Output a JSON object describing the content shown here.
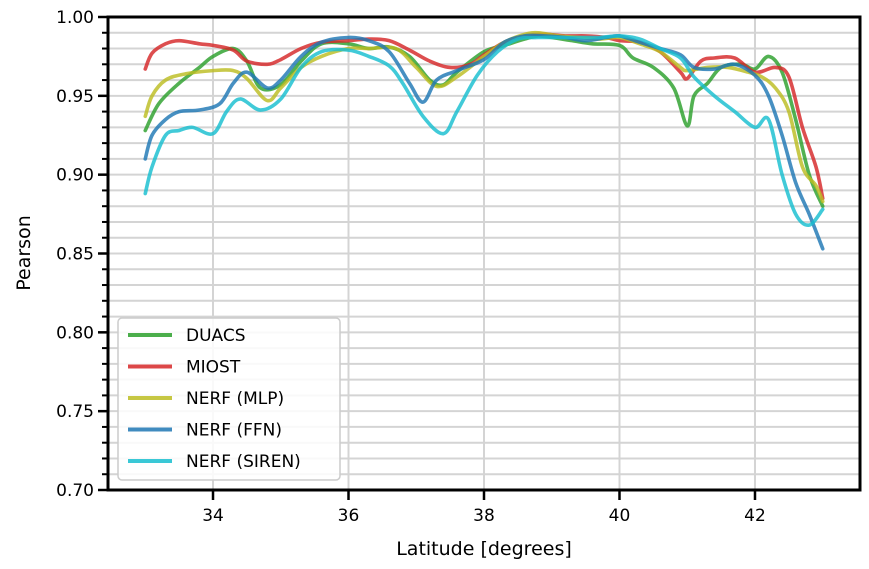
{
  "chart_data": {
    "type": "line",
    "xlabel": "Latitude [degrees]",
    "ylabel": "Pearson",
    "xlim": [
      32.45,
      43.55
    ],
    "ylim": [
      0.7,
      1.0
    ],
    "xticks": [
      34,
      36,
      38,
      40,
      42
    ],
    "xtick_labels": [
      "34",
      "36",
      "38",
      "40",
      "42"
    ],
    "yticks": [
      0.7,
      0.75,
      0.8,
      0.85,
      0.9,
      0.95,
      1.0
    ],
    "ytick_labels": [
      "0.70",
      "0.75",
      "0.80",
      "0.85",
      "0.90",
      "0.95",
      "1.00"
    ],
    "grid": true,
    "legend_position": "lower-left",
    "series": [
      {
        "name": "DUACS",
        "color": "#2ca02c",
        "points": [
          [
            33.0,
            0.928
          ],
          [
            33.2,
            0.945
          ],
          [
            33.5,
            0.958
          ],
          [
            33.8,
            0.968
          ],
          [
            34.0,
            0.975
          ],
          [
            34.3,
            0.98
          ],
          [
            34.5,
            0.972
          ],
          [
            34.7,
            0.955
          ],
          [
            35.0,
            0.957
          ],
          [
            35.3,
            0.972
          ],
          [
            35.6,
            0.983
          ],
          [
            36.0,
            0.983
          ],
          [
            36.3,
            0.98
          ],
          [
            36.6,
            0.981
          ],
          [
            36.9,
            0.975
          ],
          [
            37.2,
            0.96
          ],
          [
            37.4,
            0.957
          ],
          [
            37.6,
            0.965
          ],
          [
            38.0,
            0.978
          ],
          [
            38.3,
            0.982
          ],
          [
            38.6,
            0.986
          ],
          [
            38.8,
            0.988
          ],
          [
            39.0,
            0.987
          ],
          [
            39.3,
            0.985
          ],
          [
            39.6,
            0.983
          ],
          [
            40.0,
            0.982
          ],
          [
            40.2,
            0.974
          ],
          [
            40.5,
            0.968
          ],
          [
            40.8,
            0.955
          ],
          [
            41.0,
            0.931
          ],
          [
            41.1,
            0.95
          ],
          [
            41.3,
            0.958
          ],
          [
            41.5,
            0.968
          ],
          [
            41.8,
            0.97
          ],
          [
            42.0,
            0.967
          ],
          [
            42.2,
            0.975
          ],
          [
            42.4,
            0.965
          ],
          [
            42.6,
            0.935
          ],
          [
            42.8,
            0.9
          ],
          [
            43.0,
            0.88
          ]
        ]
      },
      {
        "name": "MIOST",
        "color": "#d62728",
        "points": [
          [
            33.0,
            0.967
          ],
          [
            33.1,
            0.977
          ],
          [
            33.3,
            0.983
          ],
          [
            33.5,
            0.985
          ],
          [
            33.8,
            0.983
          ],
          [
            34.0,
            0.982
          ],
          [
            34.3,
            0.979
          ],
          [
            34.5,
            0.972
          ],
          [
            34.8,
            0.97
          ],
          [
            35.0,
            0.973
          ],
          [
            35.3,
            0.98
          ],
          [
            35.6,
            0.984
          ],
          [
            36.0,
            0.985
          ],
          [
            36.3,
            0.986
          ],
          [
            36.6,
            0.985
          ],
          [
            36.9,
            0.979
          ],
          [
            37.2,
            0.972
          ],
          [
            37.5,
            0.968
          ],
          [
            37.8,
            0.97
          ],
          [
            38.0,
            0.976
          ],
          [
            38.3,
            0.984
          ],
          [
            38.6,
            0.988
          ],
          [
            38.9,
            0.989
          ],
          [
            39.2,
            0.988
          ],
          [
            39.5,
            0.988
          ],
          [
            39.8,
            0.987
          ],
          [
            40.0,
            0.985
          ],
          [
            40.3,
            0.984
          ],
          [
            40.6,
            0.978
          ],
          [
            40.9,
            0.965
          ],
          [
            41.0,
            0.961
          ],
          [
            41.2,
            0.972
          ],
          [
            41.4,
            0.974
          ],
          [
            41.7,
            0.974
          ],
          [
            42.0,
            0.965
          ],
          [
            42.3,
            0.968
          ],
          [
            42.5,
            0.962
          ],
          [
            42.7,
            0.93
          ],
          [
            42.9,
            0.905
          ],
          [
            43.0,
            0.885
          ]
        ]
      },
      {
        "name": "NERF (MLP)",
        "color": "#bcbd22",
        "points": [
          [
            33.0,
            0.937
          ],
          [
            33.1,
            0.95
          ],
          [
            33.3,
            0.96
          ],
          [
            33.6,
            0.964
          ],
          [
            34.0,
            0.966
          ],
          [
            34.3,
            0.966
          ],
          [
            34.5,
            0.961
          ],
          [
            34.8,
            0.947
          ],
          [
            35.0,
            0.955
          ],
          [
            35.3,
            0.968
          ],
          [
            35.6,
            0.975
          ],
          [
            36.0,
            0.98
          ],
          [
            36.3,
            0.98
          ],
          [
            36.7,
            0.98
          ],
          [
            37.0,
            0.968
          ],
          [
            37.3,
            0.956
          ],
          [
            37.6,
            0.962
          ],
          [
            38.0,
            0.975
          ],
          [
            38.3,
            0.984
          ],
          [
            38.6,
            0.989
          ],
          [
            38.8,
            0.99
          ],
          [
            39.1,
            0.988
          ],
          [
            39.4,
            0.987
          ],
          [
            39.7,
            0.986
          ],
          [
            40.0,
            0.987
          ],
          [
            40.3,
            0.983
          ],
          [
            40.6,
            0.978
          ],
          [
            40.9,
            0.968
          ],
          [
            41.0,
            0.966
          ],
          [
            41.3,
            0.968
          ],
          [
            41.6,
            0.968
          ],
          [
            41.9,
            0.965
          ],
          [
            42.1,
            0.962
          ],
          [
            42.3,
            0.955
          ],
          [
            42.5,
            0.94
          ],
          [
            42.7,
            0.905
          ],
          [
            42.9,
            0.893
          ],
          [
            43.0,
            0.883
          ]
        ]
      },
      {
        "name": "NERF (FFN)",
        "color": "#1f77b4",
        "points": [
          [
            33.0,
            0.91
          ],
          [
            33.1,
            0.925
          ],
          [
            33.3,
            0.935
          ],
          [
            33.5,
            0.94
          ],
          [
            33.8,
            0.941
          ],
          [
            34.1,
            0.945
          ],
          [
            34.3,
            0.958
          ],
          [
            34.5,
            0.965
          ],
          [
            34.8,
            0.955
          ],
          [
            35.0,
            0.96
          ],
          [
            35.3,
            0.975
          ],
          [
            35.6,
            0.984
          ],
          [
            36.0,
            0.987
          ],
          [
            36.3,
            0.985
          ],
          [
            36.6,
            0.978
          ],
          [
            36.9,
            0.958
          ],
          [
            37.1,
            0.946
          ],
          [
            37.3,
            0.96
          ],
          [
            37.6,
            0.966
          ],
          [
            38.0,
            0.973
          ],
          [
            38.3,
            0.984
          ],
          [
            38.6,
            0.988
          ],
          [
            38.9,
            0.988
          ],
          [
            39.2,
            0.987
          ],
          [
            39.5,
            0.985
          ],
          [
            39.8,
            0.987
          ],
          [
            40.0,
            0.988
          ],
          [
            40.3,
            0.984
          ],
          [
            40.6,
            0.98
          ],
          [
            40.9,
            0.976
          ],
          [
            41.1,
            0.968
          ],
          [
            41.4,
            0.967
          ],
          [
            41.7,
            0.97
          ],
          [
            42.0,
            0.963
          ],
          [
            42.2,
            0.95
          ],
          [
            42.4,
            0.925
          ],
          [
            42.6,
            0.895
          ],
          [
            42.8,
            0.875
          ],
          [
            43.0,
            0.853
          ]
        ]
      },
      {
        "name": "NERF (SIREN)",
        "color": "#17becf",
        "points": [
          [
            33.0,
            0.888
          ],
          [
            33.1,
            0.905
          ],
          [
            33.3,
            0.925
          ],
          [
            33.5,
            0.928
          ],
          [
            33.7,
            0.93
          ],
          [
            34.0,
            0.926
          ],
          [
            34.2,
            0.94
          ],
          [
            34.4,
            0.948
          ],
          [
            34.7,
            0.941
          ],
          [
            35.0,
            0.948
          ],
          [
            35.3,
            0.968
          ],
          [
            35.6,
            0.978
          ],
          [
            36.0,
            0.979
          ],
          [
            36.3,
            0.975
          ],
          [
            36.6,
            0.969
          ],
          [
            36.8,
            0.958
          ],
          [
            37.1,
            0.937
          ],
          [
            37.4,
            0.926
          ],
          [
            37.6,
            0.94
          ],
          [
            37.9,
            0.963
          ],
          [
            38.2,
            0.978
          ],
          [
            38.5,
            0.986
          ],
          [
            38.8,
            0.987
          ],
          [
            39.1,
            0.987
          ],
          [
            39.4,
            0.987
          ],
          [
            39.7,
            0.987
          ],
          [
            40.0,
            0.988
          ],
          [
            40.3,
            0.986
          ],
          [
            40.6,
            0.98
          ],
          [
            40.9,
            0.974
          ],
          [
            41.1,
            0.962
          ],
          [
            41.4,
            0.95
          ],
          [
            41.7,
            0.94
          ],
          [
            42.0,
            0.93
          ],
          [
            42.2,
            0.935
          ],
          [
            42.4,
            0.9
          ],
          [
            42.6,
            0.875
          ],
          [
            42.8,
            0.868
          ],
          [
            43.0,
            0.878
          ]
        ]
      }
    ]
  }
}
